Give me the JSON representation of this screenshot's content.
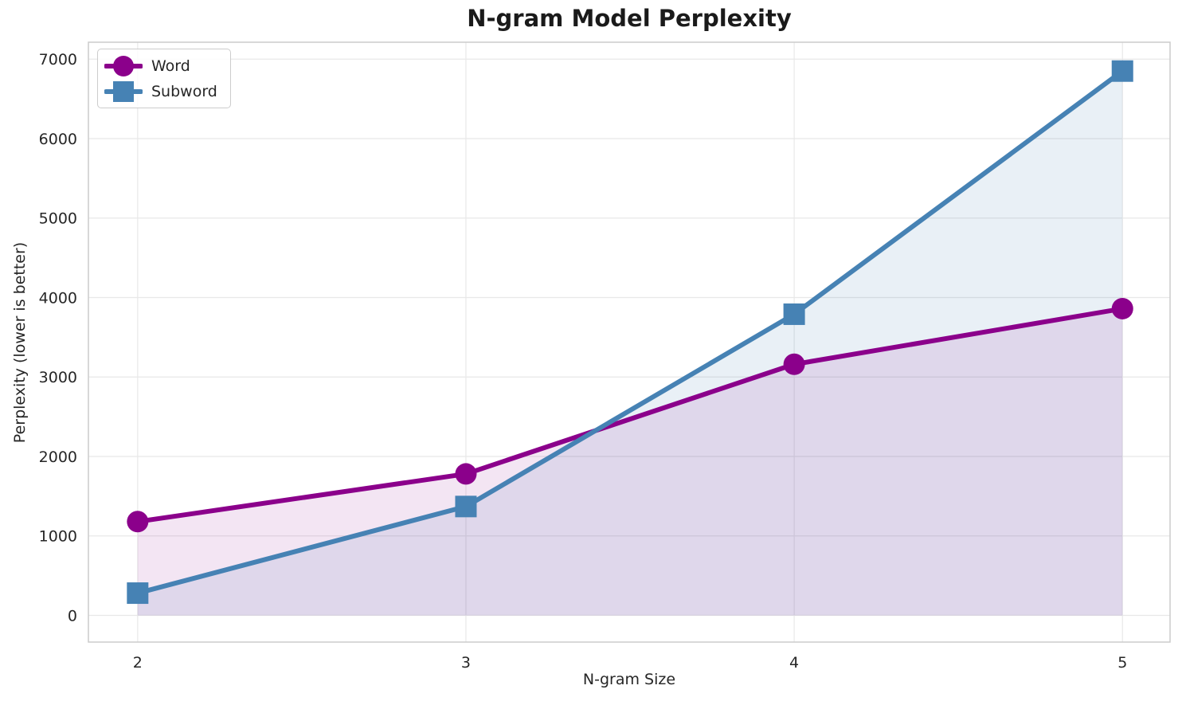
{
  "chart_data": {
    "type": "line",
    "title": "N-gram Model Perplexity",
    "xlabel": "N-gram Size",
    "ylabel": "Perplexity (lower is better)",
    "x": [
      2,
      3,
      4,
      5
    ],
    "xtick_labels": [
      "2",
      "3",
      "4",
      "5"
    ],
    "yticks": [
      0,
      1000,
      2000,
      3000,
      4000,
      5000,
      6000,
      7000
    ],
    "ytick_labels": [
      "0",
      "1000",
      "2000",
      "3000",
      "4000",
      "5000",
      "6000",
      "7000"
    ],
    "xlim": [
      1.85,
      5.145
    ],
    "ylim": [
      -336,
      7213
    ],
    "grid": true,
    "legend_position": "upper-left",
    "fill_to_zero": true,
    "series": [
      {
        "name": "Word",
        "marker": "circle",
        "color": "#8B008B",
        "fill_color": "rgba(139,0,139,0.10)",
        "values": [
          1180,
          1780,
          3160,
          3860
        ]
      },
      {
        "name": "Subword",
        "marker": "square",
        "color": "#4682B4",
        "fill_color": "rgba(70,130,180,0.12)",
        "values": [
          280,
          1370,
          3790,
          6850
        ]
      }
    ]
  },
  "colors": {
    "background": "#ffffff",
    "grid": "#e8e8e8",
    "spine": "#cccccc",
    "tick_text": "#262626",
    "title_text": "#1a1a1a"
  }
}
